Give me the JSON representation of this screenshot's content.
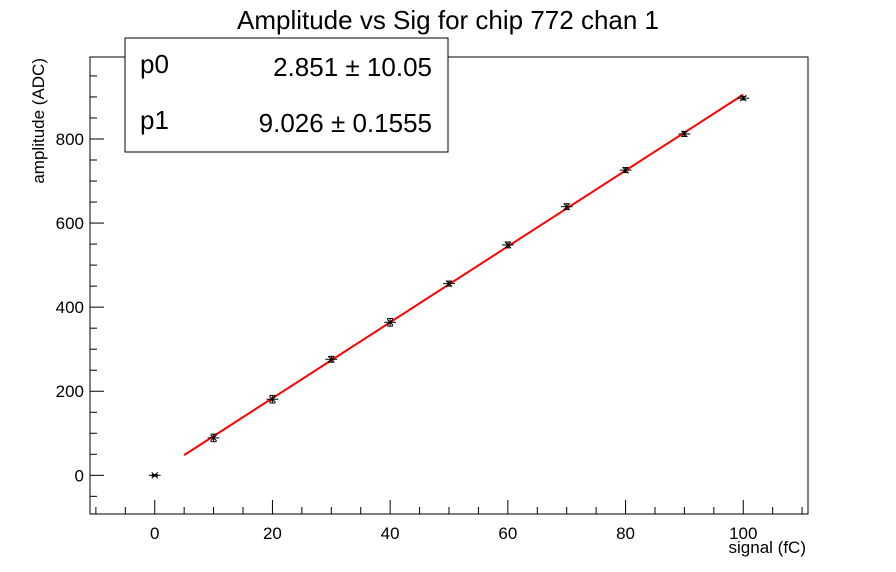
{
  "chart_data": {
    "type": "scatter",
    "title": "Amplitude vs Sig for chip 772 chan 1",
    "xlabel": "signal (fC)",
    "ylabel": "amplitude (ADC)",
    "xlim": [
      -11,
      111
    ],
    "ylim": [
      -92,
      995
    ],
    "x_ticks": [
      0,
      20,
      40,
      60,
      80,
      100
    ],
    "y_ticks": [
      0,
      200,
      400,
      600,
      800
    ],
    "x_tick_labels": [
      "0",
      "20",
      "40",
      "60",
      "80",
      "100"
    ],
    "y_tick_labels": [
      "0",
      "200",
      "400",
      "600",
      "800"
    ],
    "grid": false,
    "series": [
      {
        "x": [
          0,
          10,
          20,
          30,
          40,
          50,
          60,
          70,
          80,
          90,
          100
        ],
        "y": [
          0,
          89,
          181,
          276,
          364,
          456,
          548,
          639,
          726,
          812,
          897
        ],
        "x_err": 1,
        "y_err": [
          2,
          9,
          9,
          7,
          9,
          6,
          7,
          7,
          6,
          6,
          4
        ],
        "color": "#000000"
      }
    ],
    "fit": {
      "type": "linear",
      "color": "#ff0000",
      "x_range": [
        5,
        100
      ],
      "p0": 2.851,
      "p1": 9.026
    },
    "stats_box": {
      "position": "top-left",
      "rows": [
        {
          "name": "p0",
          "value": "2.851",
          "pm": "±",
          "error": "10.05"
        },
        {
          "name": "p1",
          "value": "9.026",
          "pm": "±",
          "error": "0.1555"
        }
      ]
    }
  }
}
